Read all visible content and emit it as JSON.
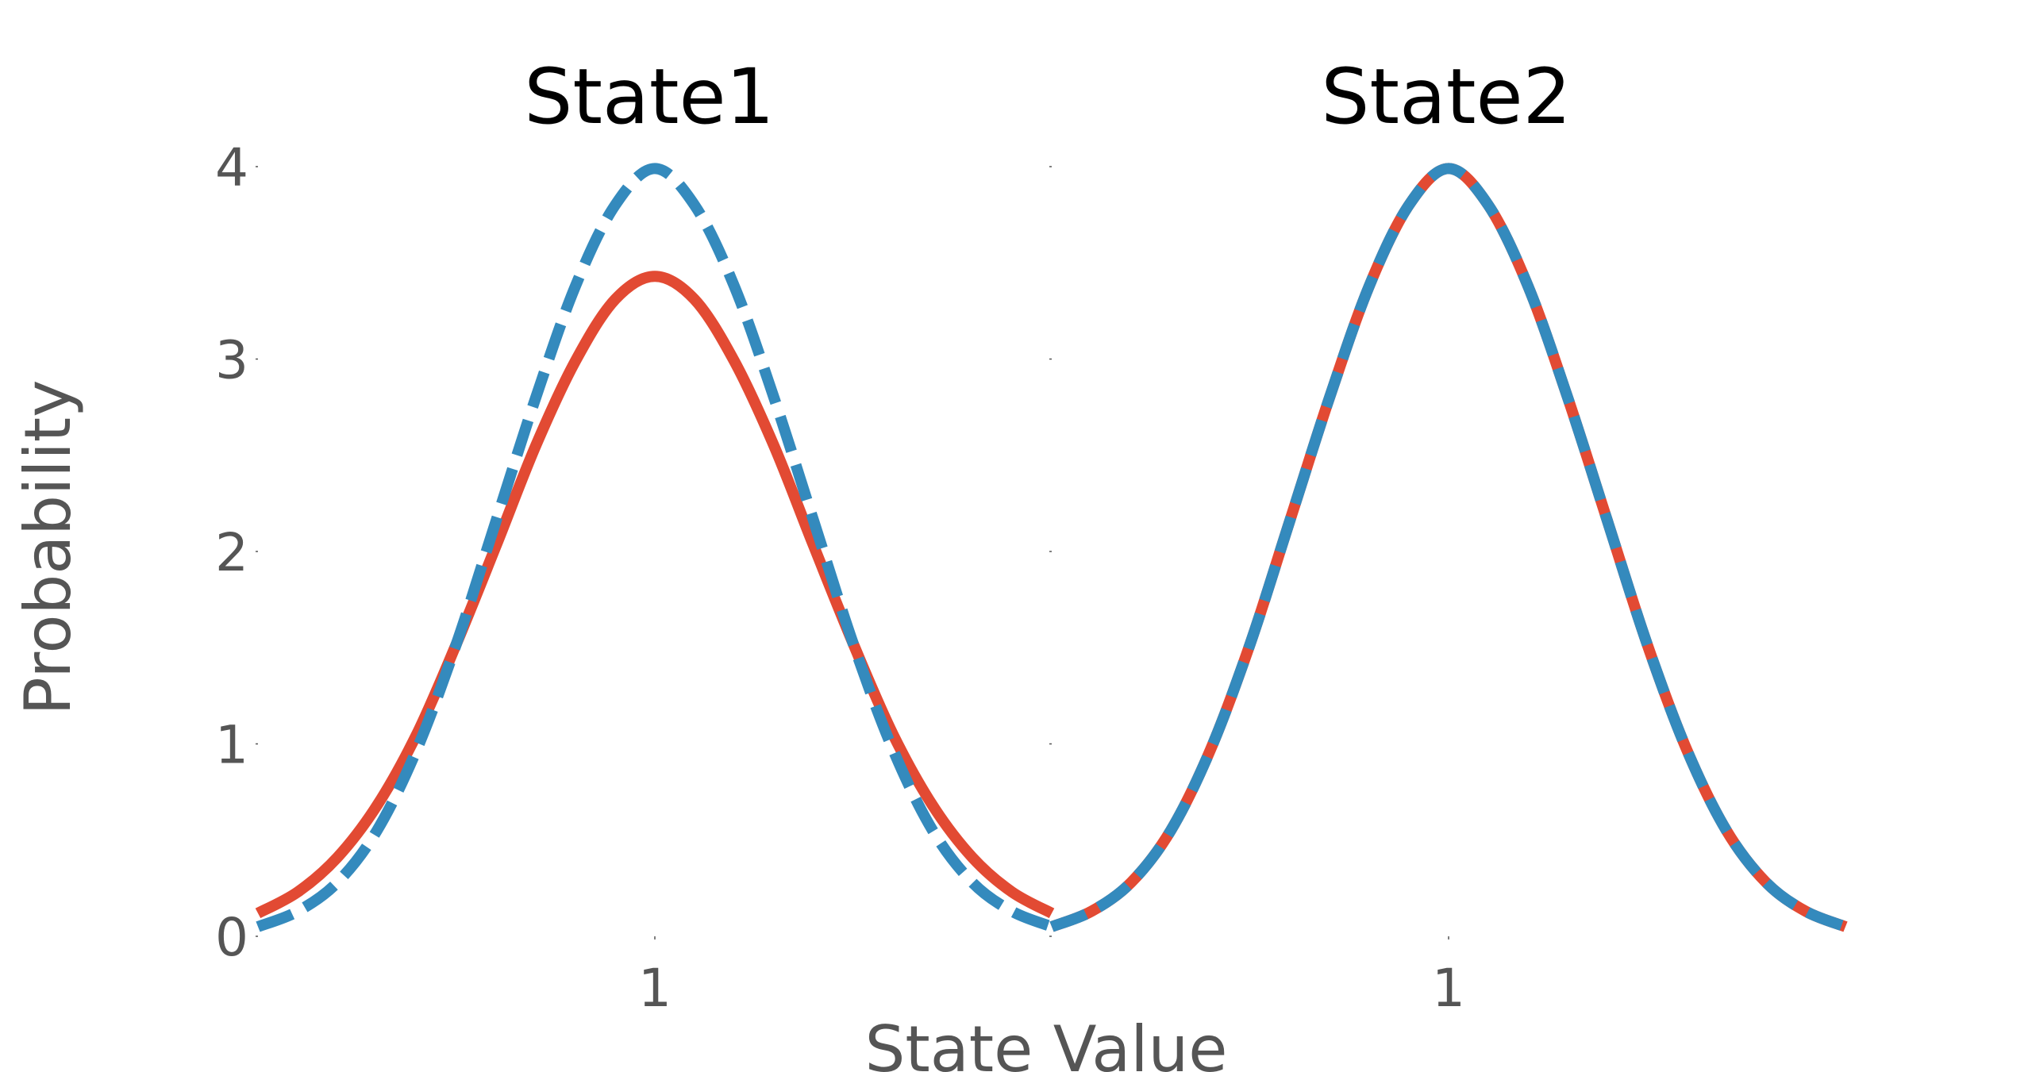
{
  "chart_data": [
    {
      "type": "line",
      "title": "State1",
      "ylabel": "Probability",
      "xlabel": "State Value",
      "xlim": [
        0.0,
        2.0
      ],
      "ylim": [
        0,
        4
      ],
      "xticks": [
        {
          "value": 1,
          "label": "1"
        }
      ],
      "yticks": [
        {
          "value": 0,
          "label": "0"
        },
        {
          "value": 1,
          "label": "1"
        },
        {
          "value": 2,
          "label": "2"
        },
        {
          "value": 3,
          "label": "3"
        },
        {
          "value": 4,
          "label": "4"
        }
      ],
      "grid": false,
      "series": [
        {
          "color": "#E24A33",
          "style": "solid",
          "x": [
            0.0,
            0.1,
            0.2,
            0.3,
            0.4,
            0.5,
            0.6,
            0.7,
            0.8,
            0.9,
            1.0,
            1.1,
            1.2,
            1.3,
            1.4,
            1.5,
            1.6,
            1.7,
            1.8,
            1.9,
            2.0
          ],
          "y": [
            0.12,
            0.23,
            0.41,
            0.68,
            1.05,
            1.52,
            2.03,
            2.55,
            2.99,
            3.31,
            3.43,
            3.31,
            2.99,
            2.55,
            2.03,
            1.52,
            1.05,
            0.68,
            0.41,
            0.23,
            0.12
          ]
        },
        {
          "color": "#348ABD",
          "style": "dashed",
          "x": [
            0.0,
            0.1,
            0.2,
            0.3,
            0.4,
            0.5,
            0.6,
            0.7,
            0.8,
            0.9,
            1.0,
            1.1,
            1.2,
            1.3,
            1.4,
            1.5,
            1.6,
            1.7,
            1.8,
            1.9,
            2.0
          ],
          "y": [
            0.05,
            0.13,
            0.28,
            0.55,
            0.97,
            1.52,
            2.16,
            2.8,
            3.38,
            3.8,
            3.99,
            3.8,
            3.38,
            2.8,
            2.16,
            1.52,
            0.97,
            0.55,
            0.28,
            0.13,
            0.05
          ]
        }
      ]
    },
    {
      "type": "line",
      "title": "State2",
      "xlim": [
        0.0,
        2.0
      ],
      "ylim": [
        0,
        4
      ],
      "xticks": [
        {
          "value": 1,
          "label": "1"
        }
      ],
      "yticks": [
        {
          "value": 0,
          "label": ""
        },
        {
          "value": 1,
          "label": ""
        },
        {
          "value": 2,
          "label": ""
        },
        {
          "value": 3,
          "label": ""
        },
        {
          "value": 4,
          "label": ""
        }
      ],
      "grid": false,
      "series": [
        {
          "color": "#E24A33",
          "style": "solid",
          "x": [
            0.0,
            0.1,
            0.2,
            0.3,
            0.4,
            0.5,
            0.6,
            0.7,
            0.8,
            0.9,
            1.0,
            1.1,
            1.2,
            1.3,
            1.4,
            1.5,
            1.6,
            1.7,
            1.8,
            1.9,
            2.0
          ],
          "y": [
            0.05,
            0.13,
            0.28,
            0.55,
            0.97,
            1.52,
            2.16,
            2.8,
            3.38,
            3.8,
            3.99,
            3.8,
            3.38,
            2.8,
            2.16,
            1.52,
            0.97,
            0.55,
            0.28,
            0.13,
            0.05
          ]
        },
        {
          "color": "#348ABD",
          "style": "dashed",
          "x": [
            0.0,
            0.1,
            0.2,
            0.3,
            0.4,
            0.5,
            0.6,
            0.7,
            0.8,
            0.9,
            1.0,
            1.1,
            1.2,
            1.3,
            1.4,
            1.5,
            1.6,
            1.7,
            1.8,
            1.9,
            2.0
          ],
          "y": [
            0.05,
            0.13,
            0.28,
            0.55,
            0.97,
            1.52,
            2.16,
            2.8,
            3.38,
            3.8,
            3.99,
            3.8,
            3.38,
            2.8,
            2.16,
            1.52,
            0.97,
            0.55,
            0.28,
            0.13,
            0.05
          ]
        }
      ]
    }
  ]
}
